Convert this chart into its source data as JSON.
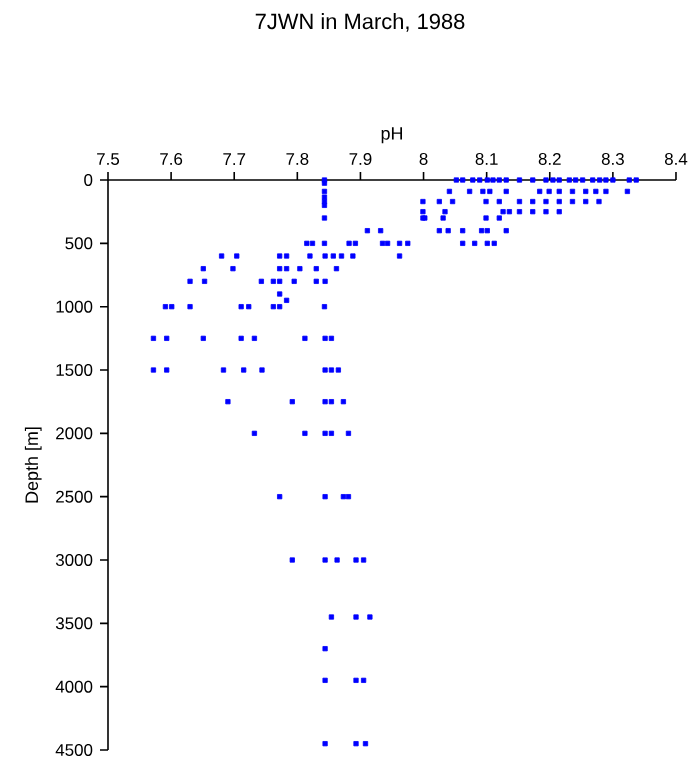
{
  "chart_data": {
    "type": "scatter",
    "title": "7JWN in March, 1988",
    "xlabel": "pH",
    "ylabel": "Depth [m]",
    "color": "#0000ff",
    "marker": "square",
    "xlim": [
      7.5,
      8.4
    ],
    "xticks": [
      7.5,
      7.6,
      7.7,
      7.8,
      7.9,
      8,
      8.1,
      8.2,
      8.3,
      8.4
    ],
    "ylim": [
      4500,
      0
    ],
    "yticks": [
      0,
      500,
      1000,
      1500,
      2000,
      2500,
      3000,
      3500,
      4000,
      4500
    ],
    "x": [
      7.843,
      8.052,
      8.062,
      8.078,
      8.089,
      8.101,
      8.11,
      8.12,
      8.131,
      8.152,
      8.173,
      8.194,
      8.205,
      8.215,
      8.231,
      8.241,
      8.252,
      8.268,
      8.279,
      8.289,
      8.3,
      8.326,
      8.337,
      7.843,
      7.843,
      8.041,
      8.073,
      8.094,
      8.105,
      8.131,
      8.184,
      8.199,
      8.215,
      8.236,
      8.257,
      8.273,
      8.289,
      8.323,
      7.843,
      7.843,
      7.999,
      8.025,
      8.046,
      8.099,
      8.12,
      8.152,
      8.173,
      8.194,
      8.215,
      8.236,
      8.257,
      8.278,
      7.843,
      7.999,
      8.034,
      8.126,
      8.136,
      8.152,
      8.173,
      8.194,
      8.215,
      7.843,
      7.999,
      8.002,
      8.031,
      8.099,
      8.12,
      7.911,
      7.932,
      8.025,
      8.039,
      8.062,
      8.092,
      8.101,
      8.131,
      7.815,
      7.824,
      7.843,
      7.882,
      7.892,
      7.935,
      7.943,
      7.962,
      7.975,
      8.062,
      8.081,
      8.101,
      8.112,
      7.68,
      7.704,
      7.772,
      7.783,
      7.82,
      7.844,
      7.857,
      7.87,
      7.888,
      7.962,
      7.651,
      7.698,
      7.772,
      7.783,
      7.804,
      7.83,
      7.862,
      7.63,
      7.653,
      7.743,
      7.762,
      7.772,
      7.795,
      7.83,
      7.844,
      7.772,
      7.783,
      7.591,
      7.601,
      7.63,
      7.711,
      7.723,
      7.762,
      7.772,
      7.843,
      7.572,
      7.593,
      7.651,
      7.711,
      7.732,
      7.812,
      7.844,
      7.854,
      7.572,
      7.593,
      7.683,
      7.715,
      7.744,
      7.844,
      7.854,
      7.865,
      7.69,
      7.792,
      7.844,
      7.854,
      7.873,
      7.732,
      7.812,
      7.844,
      7.854,
      7.881,
      7.772,
      7.844,
      7.873,
      7.881,
      7.792,
      7.844,
      7.863,
      7.893,
      7.905,
      7.854,
      7.893,
      7.915,
      7.844,
      7.844,
      7.893,
      7.905,
      7.844,
      7.893,
      7.908
    ],
    "values": [
      0,
      0,
      0,
      0,
      0,
      0,
      0,
      0,
      0,
      0,
      0,
      0,
      0,
      0,
      0,
      0,
      0,
      0,
      0,
      0,
      0,
      0,
      0,
      25,
      90,
      90,
      90,
      90,
      90,
      90,
      90,
      90,
      90,
      90,
      90,
      90,
      90,
      90,
      135,
      170,
      170,
      170,
      170,
      170,
      170,
      170,
      170,
      170,
      170,
      170,
      170,
      170,
      200,
      250,
      250,
      250,
      250,
      250,
      250,
      250,
      250,
      300,
      300,
      300,
      300,
      300,
      300,
      400,
      400,
      400,
      400,
      400,
      400,
      400,
      400,
      500,
      500,
      500,
      500,
      500,
      500,
      500,
      500,
      500,
      500,
      500,
      500,
      500,
      600,
      600,
      600,
      600,
      600,
      600,
      600,
      600,
      600,
      600,
      700,
      700,
      700,
      700,
      700,
      700,
      700,
      800,
      800,
      800,
      800,
      800,
      800,
      800,
      800,
      900,
      950,
      1000,
      1000,
      1000,
      1000,
      1000,
      1000,
      1000,
      1000,
      1250,
      1250,
      1250,
      1250,
      1250,
      1250,
      1250,
      1250,
      1500,
      1500,
      1500,
      1500,
      1500,
      1500,
      1500,
      1500,
      1750,
      1750,
      1750,
      1750,
      1750,
      2000,
      2000,
      2000,
      2000,
      2000,
      2500,
      2500,
      2500,
      2500,
      3000,
      3000,
      3000,
      3000,
      3000,
      3450,
      3450,
      3450,
      3700,
      3950,
      3950,
      3950,
      4450,
      4450,
      4450
    ]
  }
}
